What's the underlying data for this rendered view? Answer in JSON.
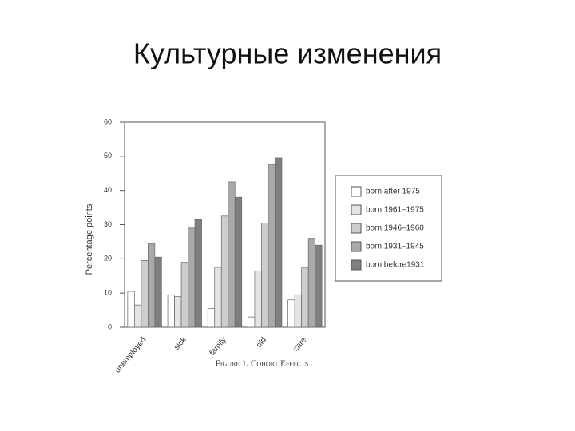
{
  "title": "Культурные изменения",
  "chart_data": {
    "type": "bar",
    "caption": "Figure 1. Cohort Effects",
    "y_label": "Percentage points",
    "categories": [
      "unemployed",
      "sick",
      "family",
      "old",
      "care"
    ],
    "series": [
      {
        "name": "born after 1975",
        "color": "#ffffff",
        "values": [
          10.5,
          9.5,
          5.5,
          3,
          8
        ]
      },
      {
        "name": "born 1961–1975",
        "color": "#e4e4e4",
        "values": [
          6.5,
          9,
          17.5,
          16.5,
          9.5
        ]
      },
      {
        "name": "born 1946–1960",
        "color": "#cdcdcd",
        "values": [
          19.5,
          19,
          32.5,
          30.5,
          17.5
        ]
      },
      {
        "name": "born 1931–1945",
        "color": "#a9a9a9",
        "values": [
          24.5,
          29,
          42.5,
          47.5,
          26
        ]
      },
      {
        "name": "born before1931",
        "color": "#7f7f7f",
        "values": [
          20.5,
          31.5,
          38,
          49.5,
          24
        ]
      }
    ],
    "ylim": [
      0,
      60
    ],
    "yticks": [
      0,
      10,
      20,
      30,
      40,
      50,
      60
    ]
  }
}
